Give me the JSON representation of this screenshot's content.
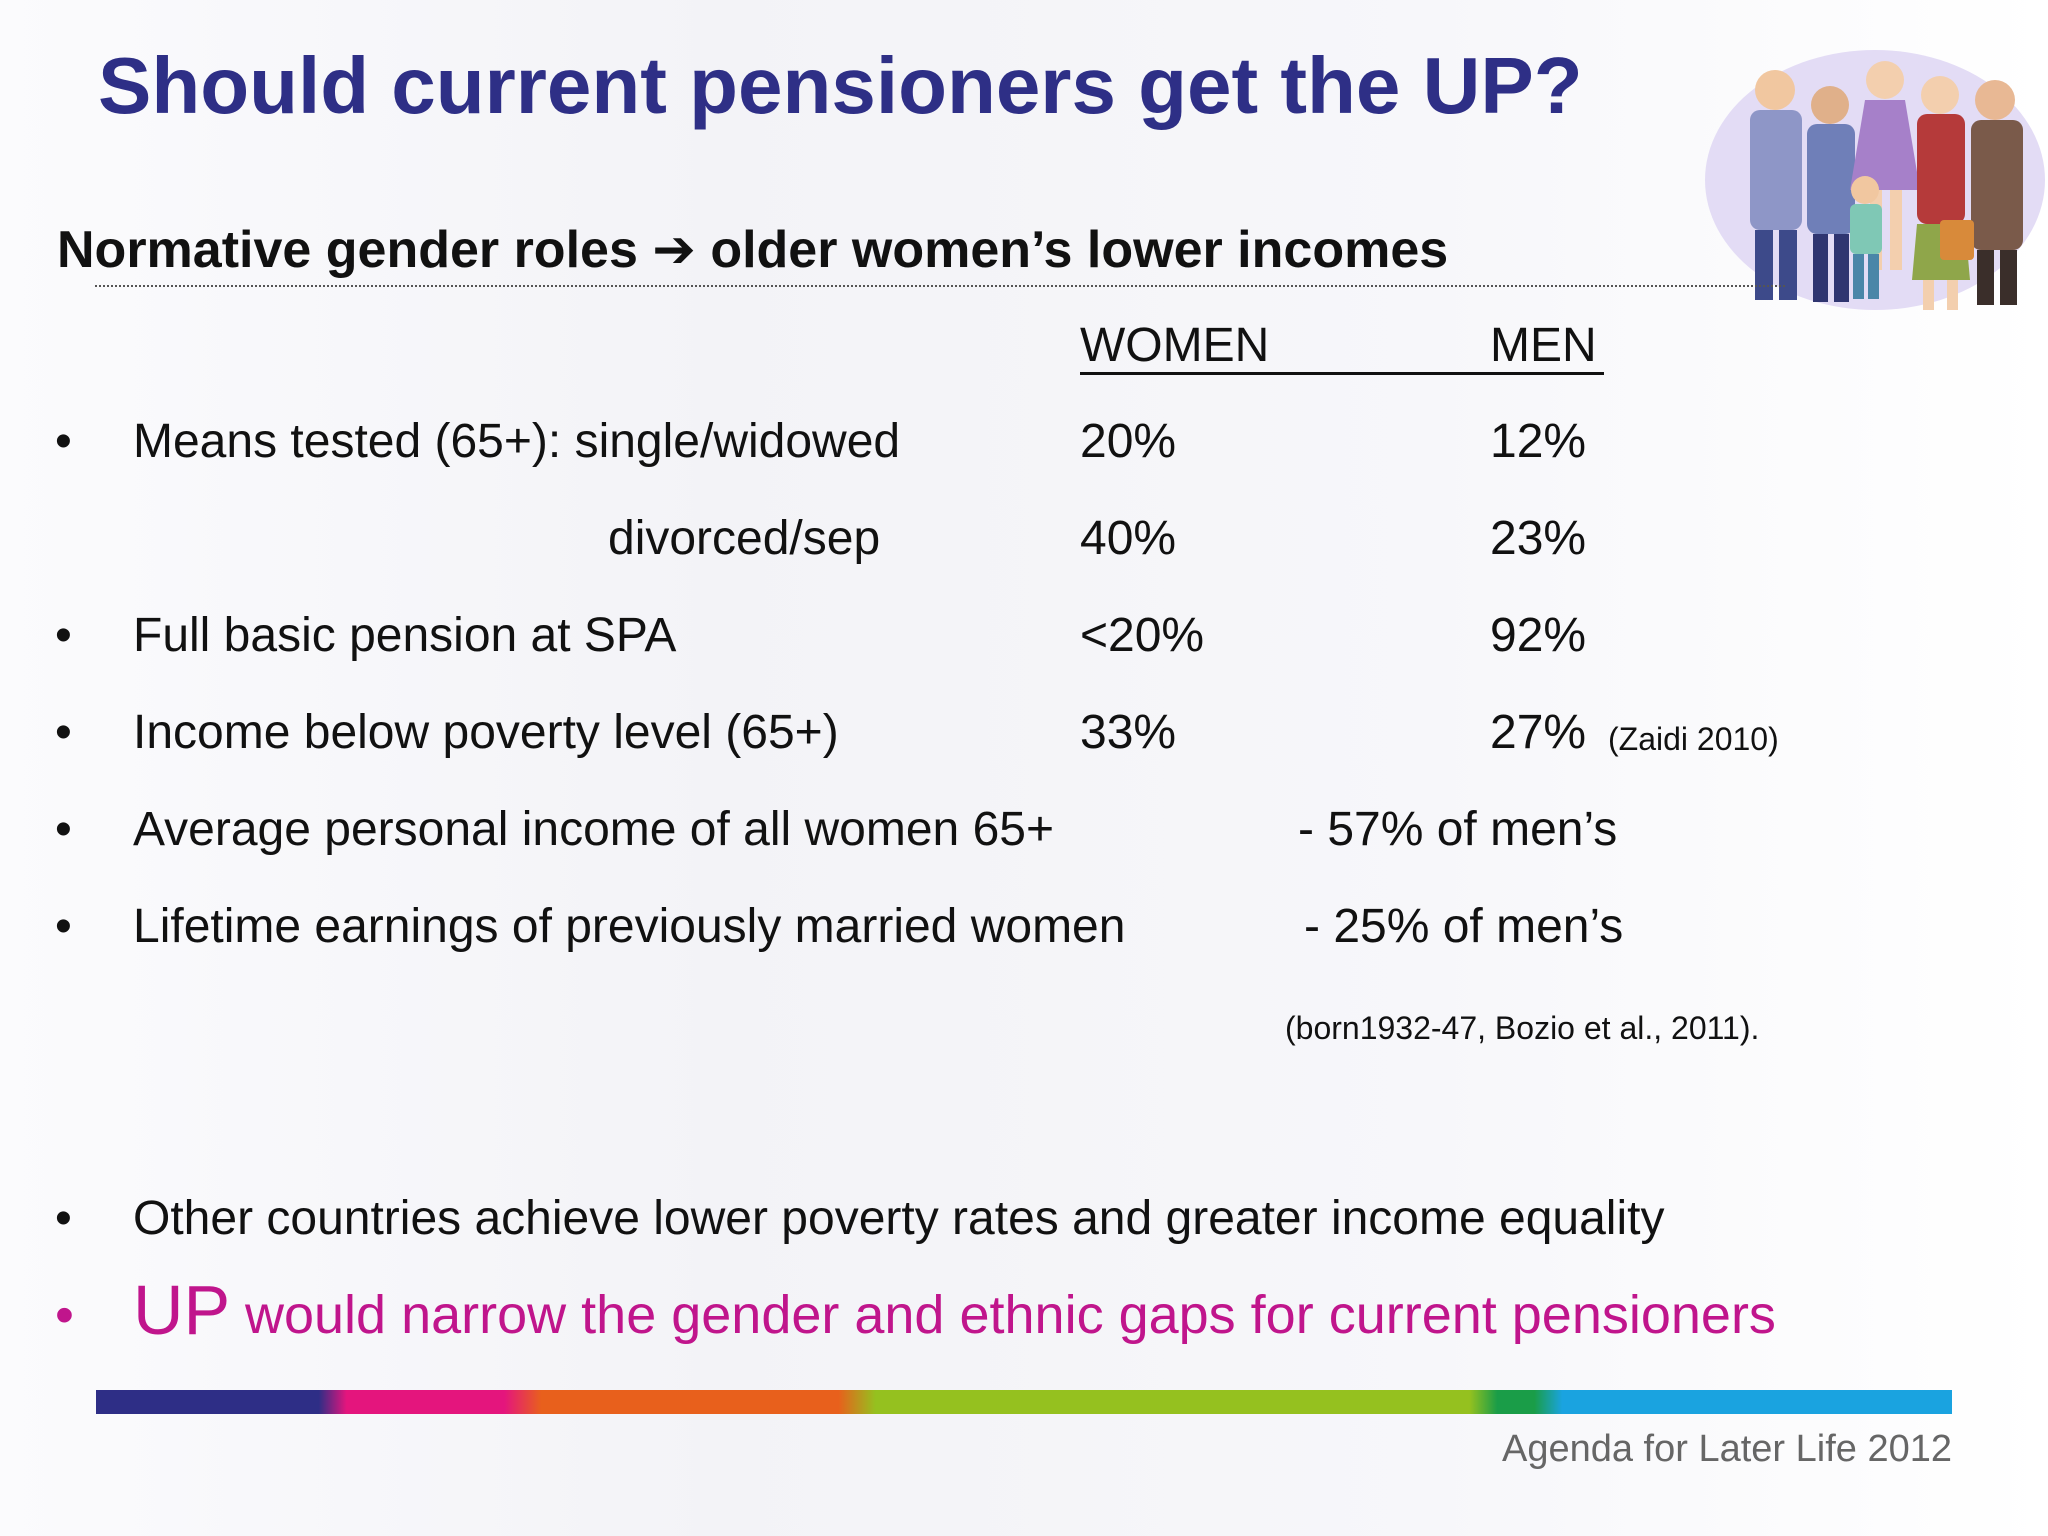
{
  "slide": {
    "title": "Should current pensioners get the UP?",
    "subtitle": "Normative gender roles ➔ older women’s lower incomes",
    "columns": {
      "women": "WOMEN",
      "men": "MEN"
    },
    "rows": [
      {
        "bullet": "•",
        "label": "Means tested (65+): single/widowed",
        "women": "20%",
        "men": "12%"
      },
      {
        "label": "divorced/sep",
        "women": "40%",
        "men": "23%"
      },
      {
        "bullet": "•",
        "label": "Full basic pension at SPA",
        "women": "<20%",
        "men": "92%"
      },
      {
        "bullet": "•",
        "label": "Income below poverty level (65+)",
        "women": "33%",
        "men": "27%",
        "note": "(Zaidi 2010)"
      }
    ],
    "comparisons": [
      {
        "bullet": "•",
        "label": "Average personal income of all women 65+",
        "value": "- 57% of men’s"
      },
      {
        "bullet": "•",
        "label": "Lifetime earnings of previously married women",
        "value": "- 25% of men’s"
      }
    ],
    "citation": "(born1932-47, Bozio et al., 2011).",
    "other_countries": {
      "bullet": "•",
      "text": "Other countries achieve lower poverty rates and greater income equality"
    },
    "up_point": {
      "bullet": "•",
      "lead": "UP",
      "text": "would narrow the gender and ethnic gaps for current pensioners"
    },
    "footer": "Agenda for Later Life 2012",
    "clipart_icon": "group-of-people-icon"
  },
  "colors": {
    "title": "#2e2f86",
    "highlight": "#c0158c",
    "bar": [
      "#2e2e86",
      "#e4157d",
      "#e8601c",
      "#95c11f",
      "#1a9d48",
      "#1aa3e0"
    ]
  }
}
